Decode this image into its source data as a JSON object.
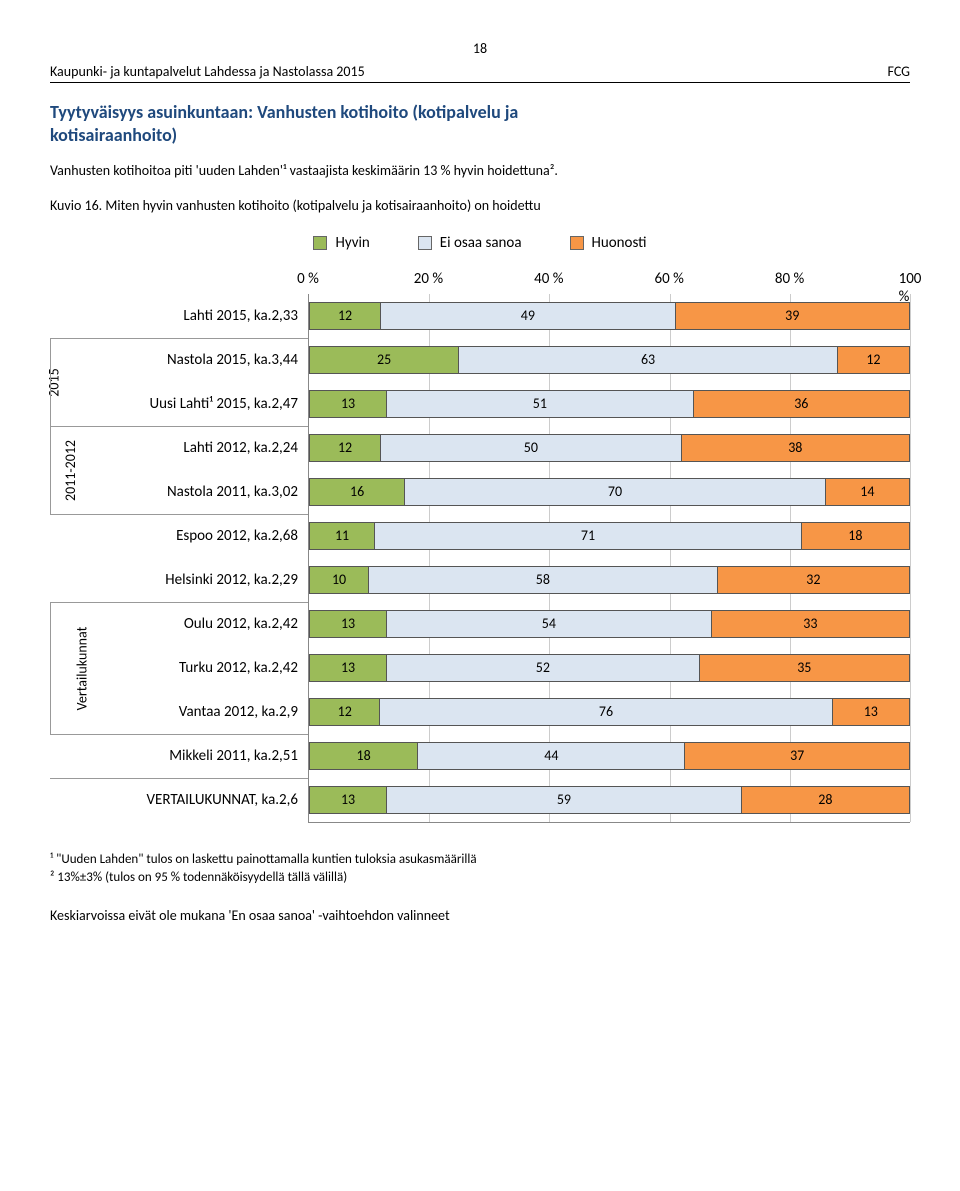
{
  "page_number": "18",
  "header_left": "Kaupunki- ja kuntapalvelut Lahdessa ja Nastolassa 2015",
  "header_right": "FCG",
  "title_line1": "Tyytyväisyys asuinkuntaan: Vanhusten kotihoito (kotipalvelu ja",
  "title_line2": "kotisairaanhoito)",
  "intro_line1": "Vanhusten kotihoitoa piti 'uuden Lahden'¹ vastaajista keskimäärin 13 % hyvin hoidettuna².",
  "kuvio_label": "Kuvio 16. Miten hyvin vanhusten kotihoito (kotipalvelu ja kotisairaanhoito) on hoidettu",
  "legend": {
    "hyvin": "Hyvin",
    "ei_osaa": "Ei osaa sanoa",
    "huonosti": "Huonosti"
  },
  "colors": {
    "hyvin": "#9bbb59",
    "ei_osaa": "#dbe5f1",
    "huonosti": "#f79646",
    "grid": "#cccccc",
    "axis": "#888888",
    "text": "#000000",
    "title": "#1f497d"
  },
  "xaxis": {
    "ticks": [
      "0 %",
      "20 %",
      "40 %",
      "60 %",
      "80 %",
      "100 %"
    ],
    "positions": [
      0,
      20,
      40,
      60,
      80,
      100
    ]
  },
  "groups": [
    {
      "label": "2015",
      "start": 1,
      "end": 2
    },
    {
      "label": "2011-2012",
      "start": 3,
      "end": 4
    },
    {
      "label": "Vertailukunnat",
      "start": 7,
      "end": 9
    }
  ],
  "rows": [
    {
      "label": "Lahti 2015, ka.2,33",
      "values": [
        12,
        49,
        39
      ],
      "top_border": false
    },
    {
      "label": "Nastola 2015, ka.3,44",
      "values": [
        25,
        63,
        12
      ],
      "top_border": true
    },
    {
      "label": "Uusi Lahti¹ 2015, ka.2,47",
      "values": [
        13,
        51,
        36
      ],
      "top_border": false
    },
    {
      "label": "Lahti 2012, ka.2,24",
      "values": [
        12,
        50,
        38
      ],
      "top_border": true
    },
    {
      "label": "Nastola 2011, ka.3,02",
      "values": [
        16,
        70,
        14
      ],
      "top_border": false
    },
    {
      "label": "Espoo 2012, ka.2,68",
      "values": [
        11,
        71,
        18
      ],
      "top_border": true
    },
    {
      "label": "Helsinki 2012, ka.2,29",
      "values": [
        10,
        58,
        32
      ],
      "top_border": false
    },
    {
      "label": "Oulu 2012, ka.2,42",
      "values": [
        13,
        54,
        33
      ],
      "top_border": true
    },
    {
      "label": "Turku 2012, ka.2,42",
      "values": [
        13,
        52,
        35
      ],
      "top_border": false
    },
    {
      "label": "Vantaa 2012, ka.2,9",
      "values": [
        12,
        76,
        13
      ],
      "top_border": false
    },
    {
      "label": "Mikkeli 2011, ka.2,51",
      "values": [
        18,
        44,
        37
      ],
      "top_border": true
    },
    {
      "label": "VERTAILUKUNNAT, ka.2,6",
      "values": [
        13,
        59,
        28
      ],
      "top_border": true
    }
  ],
  "footnote1": "¹ \"Uuden Lahden\" tulos on laskettu painottamalla kuntien tuloksia asukasmäärillä",
  "footnote2": "² 13%±3% (tulos on 95 % todennäköisyydellä tällä välillä)",
  "bottom": "Keskiarvoissa eivät ole  mukana 'En osaa sanoa' -vaihtoehdon valinneet"
}
